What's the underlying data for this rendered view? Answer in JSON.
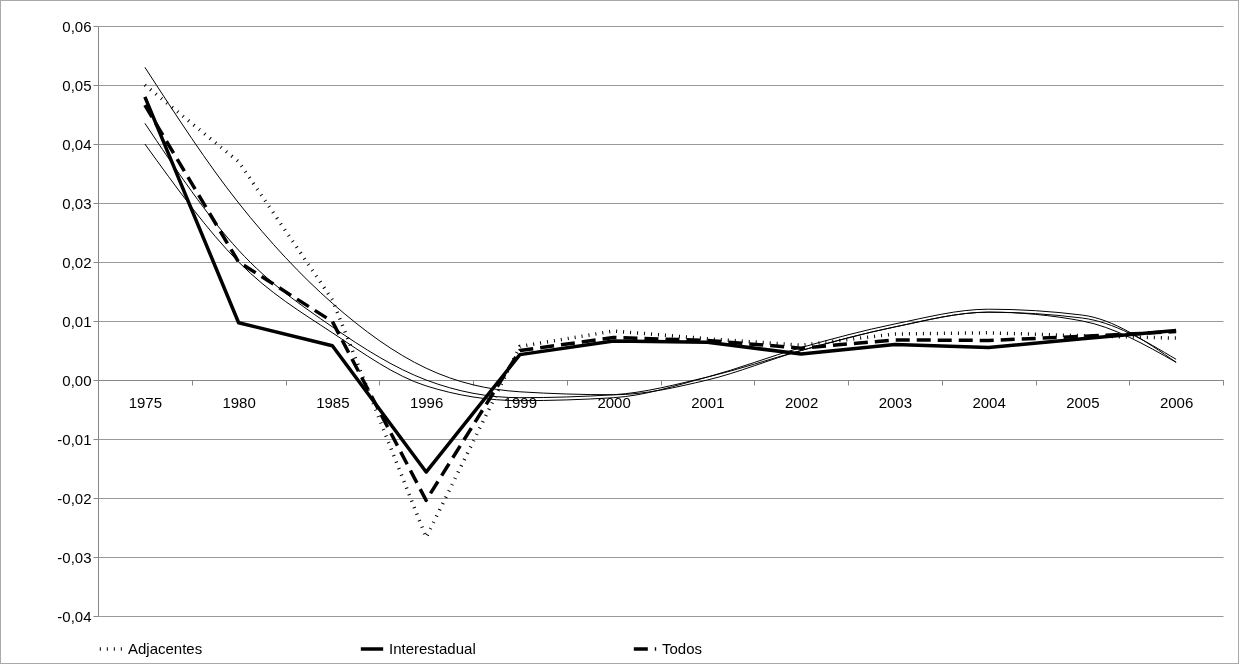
{
  "chart_data": {
    "type": "line",
    "categories": [
      "1975",
      "1980",
      "1985",
      "1996",
      "1999",
      "2000",
      "2001",
      "2002",
      "2003",
      "2004",
      "2005",
      "2006"
    ],
    "series": [
      {
        "name": "Adjacentes",
        "color": "#000000",
        "line_style": "dotted",
        "values": [
          0.05,
          0.037,
          0.0136,
          -0.0267,
          0.0057,
          0.0083,
          0.007,
          0.0059,
          0.0078,
          0.008,
          0.0075,
          0.0071
        ]
      },
      {
        "name": "Interestadual",
        "color": "#000000",
        "line_style": "solid",
        "values": [
          0.048,
          0.0097,
          0.0058,
          -0.0156,
          0.0043,
          0.0066,
          0.0064,
          0.0044,
          0.006,
          0.0055,
          0.007,
          0.0084
        ]
      },
      {
        "name": "Todos",
        "color": "#000000",
        "line_style": "dashed",
        "values": [
          0.0466,
          0.02,
          0.0099,
          -0.0204,
          0.005,
          0.0072,
          0.0067,
          0.0054,
          0.0068,
          0.0067,
          0.0074,
          0.0082
        ]
      },
      {
        "type": "line",
        "color": "#000000",
        "line_style": "solid",
        "values": [
          0.053,
          0.03,
          0.013,
          0.002,
          -0.002,
          -0.0025,
          0.0,
          0.005,
          0.009,
          0.0115,
          0.01,
          0.003
        ]
      },
      {
        "type": "line",
        "color": "#000000",
        "line_style": "solid",
        "values": [
          0.0435,
          0.022,
          0.009,
          0.0,
          -0.003,
          -0.0025,
          0.0005,
          0.005,
          0.009,
          0.0115,
          0.0105,
          0.0035
        ]
      },
      {
        "type": "line",
        "color": "#000000",
        "line_style": "solid",
        "values": [
          0.04,
          0.02,
          0.008,
          -0.001,
          -0.0035,
          -0.003,
          0.0005,
          0.0055,
          0.0095,
          0.012,
          0.011,
          0.003
        ]
      }
    ],
    "ylim": [
      -0.04,
      0.06
    ],
    "yticks": [
      {
        "value": -0.04,
        "label": "-0,04"
      },
      {
        "value": -0.03,
        "label": "-0,03"
      },
      {
        "value": -0.02,
        "label": "-0,02"
      },
      {
        "value": -0.01,
        "label": "-0,01"
      },
      {
        "value": 0,
        "label": "0,00"
      },
      {
        "value": 0.01,
        "label": "0,01"
      },
      {
        "value": 0.02,
        "label": "0,02"
      },
      {
        "value": 0.03,
        "label": "0,03"
      },
      {
        "value": 0.04,
        "label": "0,04"
      },
      {
        "value": 0.05,
        "label": "0,05"
      },
      {
        "value": 0.06,
        "label": "0,06"
      }
    ],
    "grid": "y",
    "legend": "bottom"
  }
}
